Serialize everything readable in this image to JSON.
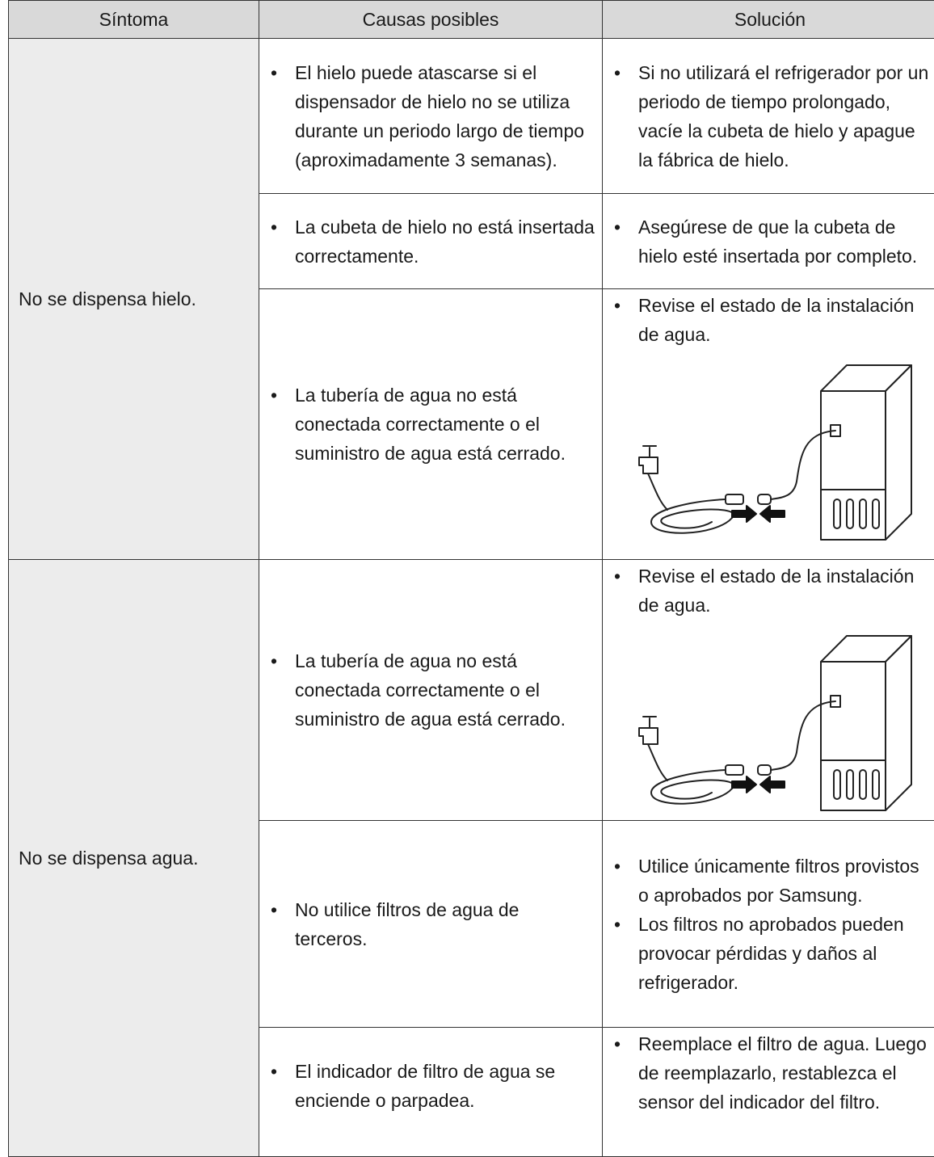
{
  "table": {
    "headers": [
      "Síntoma",
      "Causas posibles",
      "Solución"
    ],
    "groups": [
      {
        "symptom": "No se dispensa hielo.",
        "rows": [
          {
            "causes": [
              "El hielo puede atascarse si el dispensador de hielo no se utiliza durante un periodo largo de tiempo (aproximadamente 3 semanas)."
            ],
            "solutions": [
              "Si no utilizará el refrigerador por un periodo de tiempo prolongado, vacíe la cubeta de hielo y apague la fábrica de hielo."
            ]
          },
          {
            "causes": [
              "La cubeta de hielo no está insertada correctamente."
            ],
            "solutions": [
              "Asegúrese de que la cubeta de hielo esté insertada por completo."
            ]
          },
          {
            "causes": [
              "La tubería de agua no está conectada correctamente o el suministro de agua está cerrado."
            ],
            "solutions": [
              "Revise el estado de la instalación de agua."
            ]
          }
        ]
      },
      {
        "symptom": "No se dispensa agua.",
        "rows": [
          {
            "causes": [
              "La tubería de agua no está conectada correctamente o el suministro de agua está cerrado."
            ],
            "solutions": [
              "Revise el estado de la instalación de agua."
            ]
          },
          {
            "causes": [
              "No utilice filtros de agua de terceros."
            ],
            "solutions": [
              "Utilice únicamente filtros provistos o aprobados por Samsung.",
              "Los filtros no aprobados pueden provocar pérdidas y daños al refrigerador."
            ]
          },
          {
            "causes": [
              "El indicador de filtro de agua se enciende o parpadea."
            ],
            "solutions": [
              "Reemplace el filtro de agua. Luego de reemplazarlo, restablezca el sensor del indicador del filtro."
            ]
          }
        ]
      }
    ]
  }
}
